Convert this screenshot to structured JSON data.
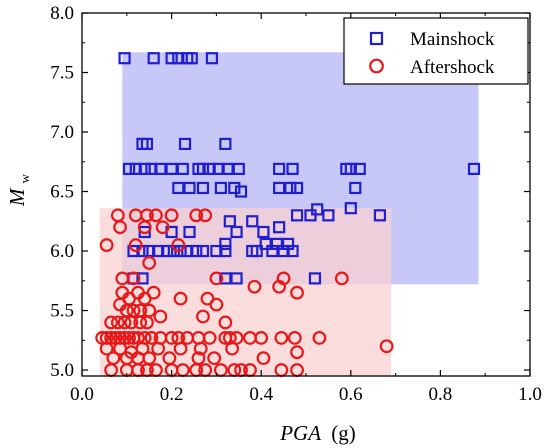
{
  "chart_data": {
    "type": "scatter",
    "xlabel_main": "PGA",
    "xlabel_unit": "(g)",
    "ylabel_main": "M",
    "ylabel_sub": "w",
    "xlim": [
      0.0,
      1.0
    ],
    "ylim": [
      4.95,
      8.0
    ],
    "x_ticks": [
      "0.0",
      "0.2",
      "0.4",
      "0.6",
      "0.8",
      "1.0"
    ],
    "x_tick_values": [
      0.0,
      0.2,
      0.4,
      0.6,
      0.8,
      1.0
    ],
    "y_ticks": [
      "5.0",
      "5.5",
      "6.0",
      "6.5",
      "7.0",
      "7.5",
      "8.0"
    ],
    "y_tick_values": [
      5.0,
      5.5,
      6.0,
      6.5,
      7.0,
      7.5,
      8.0
    ],
    "grid": false,
    "legend_position": "top-right",
    "regions": [
      {
        "series": "Mainshock",
        "x": [
          0.09,
          0.885
        ],
        "y": [
          5.72,
          7.67
        ],
        "color": "#c8c8f8"
      },
      {
        "series": "Aftershock",
        "x": [
          0.04,
          0.69
        ],
        "y": [
          4.95,
          6.36
        ],
        "color": "#fbd0d0"
      }
    ],
    "series": [
      {
        "name": "Mainshock",
        "marker": "square",
        "color": "#1f1fd0",
        "points": [
          [
            0.095,
            7.62
          ],
          [
            0.16,
            7.62
          ],
          [
            0.2,
            7.62
          ],
          [
            0.215,
            7.62
          ],
          [
            0.235,
            7.62
          ],
          [
            0.245,
            7.62
          ],
          [
            0.29,
            7.62
          ],
          [
            0.135,
            6.9
          ],
          [
            0.145,
            6.9
          ],
          [
            0.23,
            6.9
          ],
          [
            0.32,
            6.9
          ],
          [
            0.105,
            6.69
          ],
          [
            0.12,
            6.69
          ],
          [
            0.14,
            6.69
          ],
          [
            0.155,
            6.69
          ],
          [
            0.175,
            6.69
          ],
          [
            0.2,
            6.69
          ],
          [
            0.225,
            6.69
          ],
          [
            0.26,
            6.69
          ],
          [
            0.27,
            6.69
          ],
          [
            0.285,
            6.69
          ],
          [
            0.305,
            6.69
          ],
          [
            0.325,
            6.69
          ],
          [
            0.35,
            6.69
          ],
          [
            0.44,
            6.69
          ],
          [
            0.47,
            6.69
          ],
          [
            0.59,
            6.69
          ],
          [
            0.6,
            6.69
          ],
          [
            0.62,
            6.69
          ],
          [
            0.875,
            6.69
          ],
          [
            0.215,
            6.53
          ],
          [
            0.24,
            6.53
          ],
          [
            0.27,
            6.53
          ],
          [
            0.31,
            6.53
          ],
          [
            0.34,
            6.53
          ],
          [
            0.355,
            6.5
          ],
          [
            0.44,
            6.53
          ],
          [
            0.465,
            6.53
          ],
          [
            0.48,
            6.53
          ],
          [
            0.61,
            6.53
          ],
          [
            0.51,
            6.3
          ],
          [
            0.525,
            6.35
          ],
          [
            0.55,
            6.3
          ],
          [
            0.6,
            6.36
          ],
          [
            0.665,
            6.3
          ],
          [
            0.48,
            6.3
          ],
          [
            0.33,
            6.25
          ],
          [
            0.38,
            6.25
          ],
          [
            0.44,
            6.2
          ],
          [
            0.14,
            6.16
          ],
          [
            0.2,
            6.16
          ],
          [
            0.24,
            6.16
          ],
          [
            0.345,
            6.16
          ],
          [
            0.405,
            6.16
          ],
          [
            0.32,
            6.06
          ],
          [
            0.41,
            6.06
          ],
          [
            0.435,
            6.06
          ],
          [
            0.46,
            6.06
          ],
          [
            0.115,
            6.0
          ],
          [
            0.135,
            6.0
          ],
          [
            0.15,
            6.0
          ],
          [
            0.17,
            6.0
          ],
          [
            0.19,
            6.0
          ],
          [
            0.205,
            6.0
          ],
          [
            0.22,
            6.0
          ],
          [
            0.235,
            6.0
          ],
          [
            0.255,
            6.0
          ],
          [
            0.27,
            6.0
          ],
          [
            0.3,
            6.0
          ],
          [
            0.32,
            6.0
          ],
          [
            0.38,
            6.0
          ],
          [
            0.39,
            6.0
          ],
          [
            0.425,
            6.0
          ],
          [
            0.45,
            6.0
          ],
          [
            0.47,
            6.0
          ],
          [
            0.115,
            5.77
          ],
          [
            0.135,
            5.77
          ],
          [
            0.32,
            5.77
          ],
          [
            0.345,
            5.77
          ],
          [
            0.52,
            5.77
          ]
        ]
      },
      {
        "name": "Aftershock",
        "marker": "circle",
        "color": "#e81818",
        "points": [
          [
            0.08,
            6.3
          ],
          [
            0.12,
            6.3
          ],
          [
            0.145,
            6.3
          ],
          [
            0.165,
            6.3
          ],
          [
            0.2,
            6.3
          ],
          [
            0.255,
            6.3
          ],
          [
            0.275,
            6.3
          ],
          [
            0.085,
            6.2
          ],
          [
            0.14,
            6.2
          ],
          [
            0.18,
            6.2
          ],
          [
            0.055,
            6.05
          ],
          [
            0.12,
            6.05
          ],
          [
            0.215,
            6.05
          ],
          [
            0.15,
            5.9
          ],
          [
            0.3,
            5.77
          ],
          [
            0.45,
            5.77
          ],
          [
            0.58,
            5.77
          ],
          [
            0.09,
            5.77
          ],
          [
            0.115,
            5.77
          ],
          [
            0.385,
            5.7
          ],
          [
            0.44,
            5.7
          ],
          [
            0.48,
            5.65
          ],
          [
            0.09,
            5.65
          ],
          [
            0.105,
            5.6
          ],
          [
            0.125,
            5.65
          ],
          [
            0.14,
            5.6
          ],
          [
            0.16,
            5.65
          ],
          [
            0.22,
            5.6
          ],
          [
            0.28,
            5.6
          ],
          [
            0.3,
            5.55
          ],
          [
            0.085,
            5.55
          ],
          [
            0.1,
            5.5
          ],
          [
            0.115,
            5.5
          ],
          [
            0.13,
            5.5
          ],
          [
            0.15,
            5.5
          ],
          [
            0.175,
            5.45
          ],
          [
            0.27,
            5.45
          ],
          [
            0.065,
            5.4
          ],
          [
            0.08,
            5.4
          ],
          [
            0.095,
            5.4
          ],
          [
            0.11,
            5.4
          ],
          [
            0.13,
            5.4
          ],
          [
            0.145,
            5.4
          ],
          [
            0.32,
            5.4
          ],
          [
            0.045,
            5.27
          ],
          [
            0.055,
            5.27
          ],
          [
            0.065,
            5.27
          ],
          [
            0.075,
            5.27
          ],
          [
            0.085,
            5.27
          ],
          [
            0.095,
            5.27
          ],
          [
            0.105,
            5.27
          ],
          [
            0.115,
            5.27
          ],
          [
            0.125,
            5.27
          ],
          [
            0.14,
            5.27
          ],
          [
            0.155,
            5.27
          ],
          [
            0.175,
            5.27
          ],
          [
            0.2,
            5.27
          ],
          [
            0.215,
            5.27
          ],
          [
            0.235,
            5.27
          ],
          [
            0.26,
            5.27
          ],
          [
            0.285,
            5.27
          ],
          [
            0.32,
            5.27
          ],
          [
            0.345,
            5.27
          ],
          [
            0.375,
            5.27
          ],
          [
            0.4,
            5.27
          ],
          [
            0.445,
            5.27
          ],
          [
            0.475,
            5.27
          ],
          [
            0.53,
            5.27
          ],
          [
            0.33,
            5.27
          ],
          [
            0.055,
            5.18
          ],
          [
            0.085,
            5.18
          ],
          [
            0.11,
            5.15
          ],
          [
            0.135,
            5.18
          ],
          [
            0.17,
            5.18
          ],
          [
            0.22,
            5.18
          ],
          [
            0.265,
            5.18
          ],
          [
            0.335,
            5.18
          ],
          [
            0.48,
            5.15
          ],
          [
            0.68,
            5.2
          ],
          [
            0.07,
            5.1
          ],
          [
            0.1,
            5.1
          ],
          [
            0.125,
            5.1
          ],
          [
            0.15,
            5.1
          ],
          [
            0.195,
            5.1
          ],
          [
            0.26,
            5.1
          ],
          [
            0.295,
            5.1
          ],
          [
            0.405,
            5.1
          ],
          [
            0.065,
            5.0
          ],
          [
            0.1,
            5.0
          ],
          [
            0.125,
            5.0
          ],
          [
            0.145,
            5.0
          ],
          [
            0.165,
            5.0
          ],
          [
            0.2,
            5.0
          ],
          [
            0.225,
            5.0
          ],
          [
            0.255,
            5.0
          ],
          [
            0.275,
            5.0
          ],
          [
            0.31,
            5.0
          ],
          [
            0.34,
            5.0
          ],
          [
            0.355,
            5.0
          ],
          [
            0.375,
            5.0
          ],
          [
            0.445,
            5.0
          ],
          [
            0.48,
            5.0
          ]
        ]
      }
    ]
  }
}
